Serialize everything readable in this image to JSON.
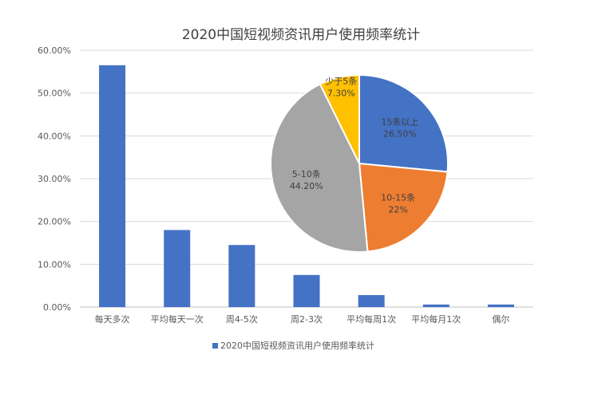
{
  "chart_data": [
    {
      "type": "bar",
      "title": "2020中国短视频资讯用户使用频率统计",
      "categories": [
        "每天多次",
        "平均每天一次",
        "周4-5次",
        "周2-3次",
        "平均每周1次",
        "平均每月1次",
        "偶尔"
      ],
      "series": [
        {
          "name": "2020中国短视频资讯用户使用频率统计",
          "values": [
            56.5,
            18.0,
            14.5,
            7.5,
            2.8,
            0.6,
            0.6
          ]
        }
      ],
      "ylim": [
        0,
        60
      ],
      "yticks": [
        "0.00%",
        "10.00%",
        "20.00%",
        "30.00%",
        "40.00%",
        "50.00%",
        "60.00%"
      ],
      "grid": true,
      "legend": "bottom",
      "color": "#4472C4"
    },
    {
      "type": "pie",
      "slices": [
        {
          "label": "15条以上",
          "value": 26.5,
          "value_label": "26.50%",
          "color": "#4472C4"
        },
        {
          "label": "10-15条",
          "value": 22.0,
          "value_label": "22%",
          "color": "#ED7D31"
        },
        {
          "label": "5-10条",
          "value": 44.2,
          "value_label": "44.20%",
          "color": "#A5A5A5"
        },
        {
          "label": "少于5条",
          "value": 7.3,
          "value_label": "7.30%",
          "color": "#FFC000"
        }
      ]
    }
  ]
}
